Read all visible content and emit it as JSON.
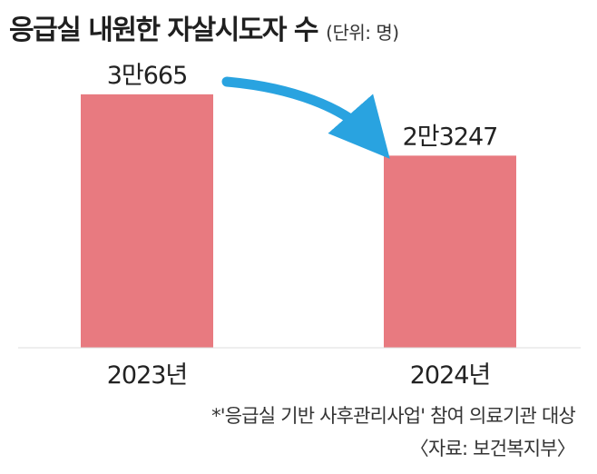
{
  "chart_data": {
    "type": "bar",
    "title": "응급실 내원한 자살시도자 수",
    "unit_label": "(단위: 명)",
    "categories": [
      "2023년",
      "2024년"
    ],
    "values": [
      30665,
      23247
    ],
    "value_labels": [
      "3만665",
      "2만3247"
    ],
    "bar_color": "#e87a80",
    "arrow_color": "#29a3e0",
    "xlabel": "",
    "ylabel": "",
    "ylim": [
      0,
      39000
    ],
    "grid": false,
    "legend": "none"
  },
  "footnote": "*'응급실 기반 사후관리사업' 참여 의료기관 대상",
  "source": "〈자료: 보건복지부〉"
}
